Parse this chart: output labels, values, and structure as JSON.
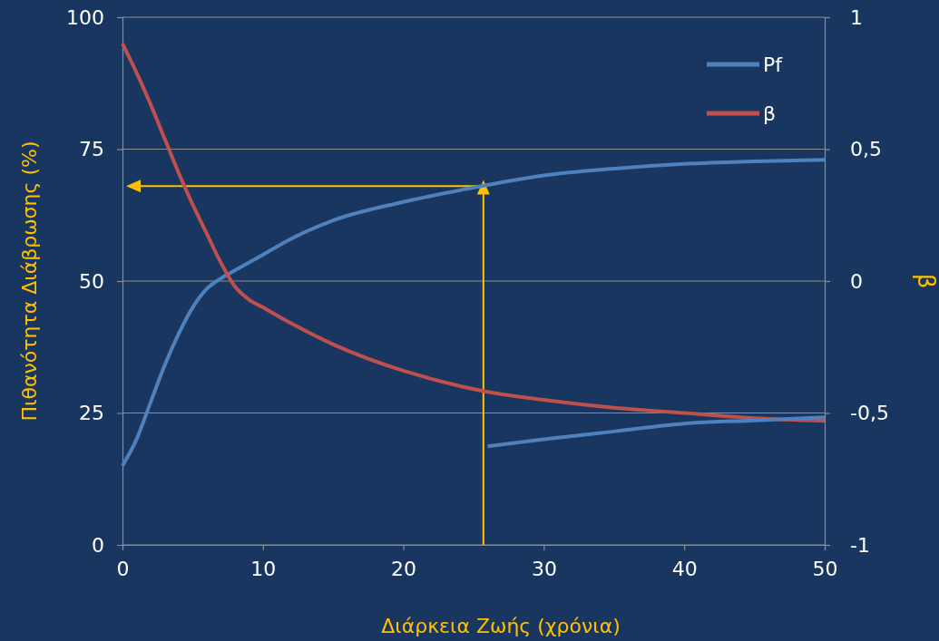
{
  "chart_data": {
    "type": "line",
    "xlabel": "Διάρκεια Ζωής (χρόνια)",
    "ylabel": "Πιθανότητα Διάβρωσης (%)",
    "y2label": "β",
    "xlim": [
      0,
      50
    ],
    "xticks": [
      0,
      10,
      20,
      30,
      40,
      50
    ],
    "ylim": [
      0,
      100
    ],
    "yticks": [
      0,
      25,
      50,
      75,
      100
    ],
    "y2lim": [
      -1,
      1
    ],
    "y2ticks": [
      {
        "value": -1,
        "label": "-1"
      },
      {
        "value": -0.5,
        "label": "-0,5"
      },
      {
        "value": 0,
        "label": "0"
      },
      {
        "value": 0.5,
        "label": "0,5"
      },
      {
        "value": 1,
        "label": "1"
      }
    ],
    "grid": "y",
    "legend": "top right",
    "marker": "none",
    "line_style": "solid",
    "series": [
      {
        "name": "Pf",
        "color": "#4f81bd",
        "x": [
          0,
          1,
          2,
          3,
          4,
          5,
          6,
          7,
          8,
          10,
          12,
          15,
          20,
          26,
          30,
          35,
          40,
          45,
          50
        ],
        "values": [
          15,
          20,
          27,
          34,
          40,
          45,
          48.5,
          50.5,
          52,
          55,
          58,
          61.5,
          65,
          68.2,
          70,
          71.3,
          72.2,
          72.7,
          73
        ]
      },
      {
        "name": "β",
        "color": "#c0504d",
        "axis": "y2",
        "x": [
          0,
          1,
          2,
          3,
          4,
          5,
          6,
          7,
          8,
          9,
          10,
          12,
          15,
          20,
          26,
          30,
          35,
          40,
          45,
          50
        ],
        "values": [
          0.9,
          0.79,
          0.67,
          0.54,
          0.41,
          0.29,
          0.18,
          0.07,
          -0.02,
          -0.07,
          -0.1,
          -0.16,
          -0.24,
          -0.34,
          -0.42,
          -0.45,
          -0.48,
          -0.5,
          -0.52,
          -0.53
        ]
      },
      {
        "color": "#4f81bd",
        "x": [
          26,
          30,
          35,
          40,
          45,
          50
        ],
        "values": [
          18.7,
          20,
          21.5,
          23,
          23.6,
          24.2
        ]
      }
    ]
  }
}
